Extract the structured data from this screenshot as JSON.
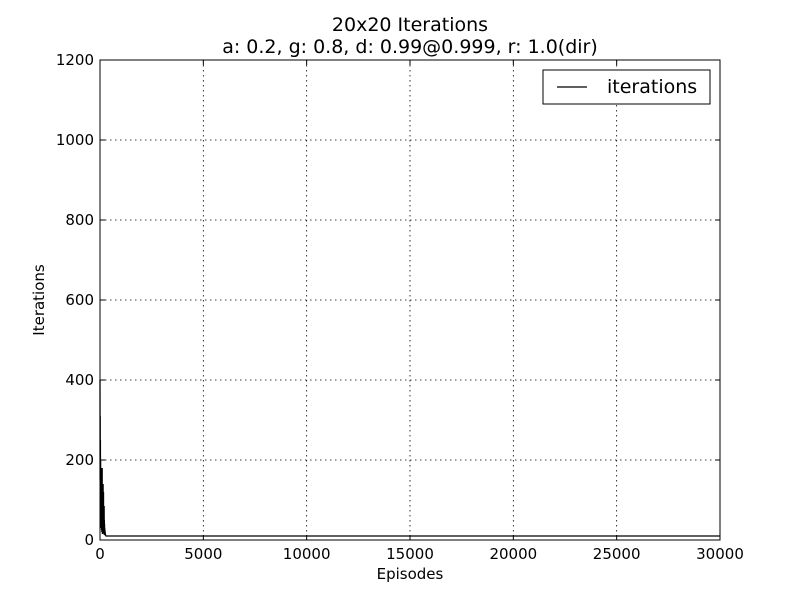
{
  "chart_data": {
    "type": "line",
    "title": "20x20 Iterations",
    "subtitle": "a: 0.2, g: 0.8, d: 0.99@0.999, r: 1.0(dir)",
    "xlabel": "Episodes",
    "ylabel": "Iterations",
    "xlim": [
      0,
      30000
    ],
    "ylim": [
      0,
      1200
    ],
    "x_ticks": [
      0,
      5000,
      10000,
      15000,
      20000,
      25000,
      30000
    ],
    "y_ticks": [
      0,
      200,
      400,
      600,
      800,
      1000,
      1200
    ],
    "grid": true,
    "legend_position": "top-right",
    "series": [
      {
        "name": "iterations",
        "color": "#000000",
        "x": [
          0,
          5,
          10,
          15,
          20,
          25,
          30,
          35,
          40,
          45,
          50,
          55,
          60,
          65,
          70,
          75,
          80,
          85,
          90,
          95,
          100,
          105,
          110,
          115,
          120,
          125,
          130,
          135,
          140,
          145,
          150,
          155,
          160,
          165,
          170,
          175,
          180,
          185,
          190,
          195,
          200,
          205,
          210,
          215,
          220,
          225,
          230,
          235,
          240,
          245,
          250,
          255,
          260,
          270,
          280,
          290,
          300,
          400,
          600,
          1000,
          2000,
          5000,
          10000,
          15000,
          20000,
          25000,
          30000
        ],
        "y": [
          400,
          150,
          310,
          90,
          250,
          60,
          200,
          110,
          40,
          170,
          80,
          30,
          180,
          50,
          120,
          25,
          160,
          70,
          20,
          130,
          40,
          180,
          60,
          15,
          140,
          35,
          110,
          20,
          90,
          45,
          140,
          18,
          80,
          30,
          120,
          16,
          70,
          25,
          60,
          14,
          85,
          20,
          50,
          13,
          40,
          18,
          30,
          12,
          25,
          14,
          20,
          12,
          15,
          12,
          11,
          10,
          10,
          10,
          10,
          10,
          10,
          10,
          10,
          10,
          10,
          10,
          10
        ]
      }
    ]
  }
}
